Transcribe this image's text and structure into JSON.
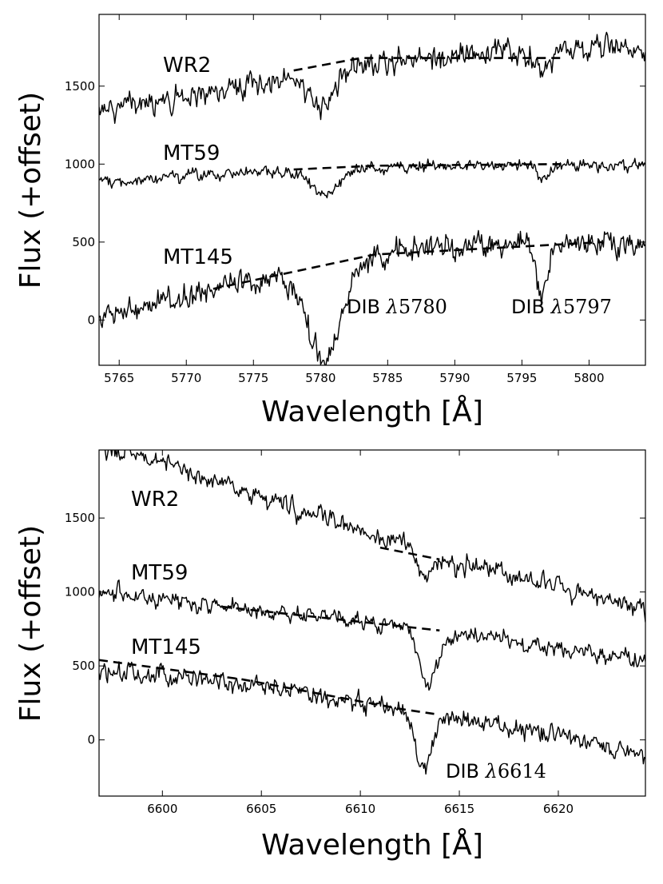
{
  "chart_data": [
    {
      "type": "line",
      "panel": "top",
      "xlabel": "Wavelength [Å]",
      "ylabel": "Flux (+offset)",
      "xlim": [
        5763.5,
        5804.2
      ],
      "ylim": [
        -290,
        1960
      ],
      "xticks": [
        5765,
        5770,
        5775,
        5780,
        5785,
        5790,
        5795,
        5800
      ],
      "yticks": [
        0,
        500,
        1000,
        1500
      ],
      "series": [
        {
          "name": "WR2",
          "label": "WR2",
          "noise": 45,
          "baseline": [
            [
              5763.5,
              1330
            ],
            [
              5770,
              1420
            ],
            [
              5775,
              1510
            ],
            [
              5780,
              1600
            ],
            [
              5785,
              1660
            ],
            [
              5790,
              1700
            ],
            [
              5795,
              1720
            ],
            [
              5800,
              1740
            ],
            [
              5804.2,
              1730
            ]
          ],
          "continuum": [
            [
              5778,
              1600
            ],
            [
              5783,
              1680
            ],
            [
              5798,
              1680
            ]
          ],
          "dips": [
            [
              5780.1,
              1.1,
              210
            ],
            [
              5796.6,
              0.45,
              150
            ]
          ]
        },
        {
          "name": "MT59",
          "label": "MT59",
          "noise": 22,
          "baseline": [
            [
              5763.5,
              880
            ],
            [
              5770,
              920
            ],
            [
              5775,
              950
            ],
            [
              5780,
              960
            ],
            [
              5785,
              980
            ],
            [
              5790,
              990
            ],
            [
              5795,
              1000
            ],
            [
              5800,
              990
            ],
            [
              5804.2,
              990
            ]
          ],
          "continuum": [
            [
              5778,
              965
            ],
            [
              5784,
              990
            ],
            [
              5798,
              1000
            ]
          ],
          "dips": [
            [
              5780.3,
              1.1,
              150
            ],
            [
              5796.6,
              0.4,
              110
            ]
          ]
        },
        {
          "name": "MT145",
          "label": "MT145",
          "noise": 50,
          "baseline": [
            [
              5763.5,
              30
            ],
            [
              5768,
              100
            ],
            [
              5772,
              200
            ],
            [
              5776,
              280
            ],
            [
              5780,
              340
            ],
            [
              5785,
              420
            ],
            [
              5790,
              470
            ],
            [
              5795,
              500
            ],
            [
              5800,
              490
            ],
            [
              5804.2,
              480
            ]
          ],
          "continuum": [
            [
              5772,
              200
            ],
            [
              5784,
              420
            ],
            [
              5801,
              500
            ]
          ],
          "dips": [
            [
              5780.3,
              1.25,
              600
            ],
            [
              5796.5,
              0.45,
              300
            ]
          ]
        }
      ],
      "annotations": [
        {
          "prefix": "DIB ",
          "lambda": "λ",
          "number": "5780",
          "x": 5781.4,
          "y": -40
        },
        {
          "prefix": "DIB ",
          "lambda": "λ",
          "number": "5797",
          "x": 5794.9,
          "y": -40
        }
      ]
    },
    {
      "type": "line",
      "panel": "bottom",
      "xlabel": "Wavelength [Å]",
      "ylabel": "Flux (+offset)",
      "xlim": [
        6596.8,
        6624.4
      ],
      "ylim": [
        -380,
        1960
      ],
      "xticks": [
        6600,
        6605,
        6610,
        6615,
        6620
      ],
      "yticks": [
        0,
        500,
        1000,
        1500
      ],
      "series": [
        {
          "name": "WR2",
          "label": "WR2",
          "noise": 40,
          "baseline": [
            [
              6596.8,
              2000
            ],
            [
              6600,
              1860
            ],
            [
              6605,
              1640
            ],
            [
              6610,
              1420
            ],
            [
              6613,
              1280
            ],
            [
              6615,
              1210
            ],
            [
              6620,
              1040
            ],
            [
              6624.4,
              880
            ]
          ],
          "continuum": [
            [
              6611,
              1300
            ],
            [
              6614,
              1220
            ]
          ],
          "dips": [
            [
              6613.3,
              0.4,
              170
            ],
            [
              6614.9,
              0.25,
              70
            ]
          ]
        },
        {
          "name": "MT59",
          "label": "MT59",
          "noise": 35,
          "baseline": [
            [
              6596.8,
              990
            ],
            [
              6600,
              950
            ],
            [
              6605,
              880
            ],
            [
              6610,
              800
            ],
            [
              6613,
              760
            ],
            [
              6615,
              720
            ],
            [
              6620,
              620
            ],
            [
              6624.4,
              530
            ]
          ],
          "continuum": [
            [
              6603,
              900
            ],
            [
              6614,
              740
            ]
          ],
          "dips": [
            [
              6613.4,
              0.5,
              360
            ]
          ]
        },
        {
          "name": "MT145",
          "label": "MT145",
          "noise": 40,
          "baseline": [
            [
              6596.8,
              470
            ],
            [
              6600,
              440
            ],
            [
              6605,
              360
            ],
            [
              6610,
              250
            ],
            [
              6613,
              190
            ],
            [
              6615,
              130
            ],
            [
              6620,
              20
            ],
            [
              6624.4,
              -100
            ]
          ],
          "continuum": [
            [
              6596.8,
              540
            ],
            [
              6604,
              410
            ],
            [
              6612,
              210
            ],
            [
              6614,
              170
            ]
          ],
          "dips": [
            [
              6613.2,
              0.4,
              380
            ]
          ]
        }
      ],
      "annotations": [
        {
          "prefix": "DIB ",
          "lambda": "λ",
          "number": "6614",
          "x": 6614.1,
          "y": -270
        }
      ]
    }
  ]
}
